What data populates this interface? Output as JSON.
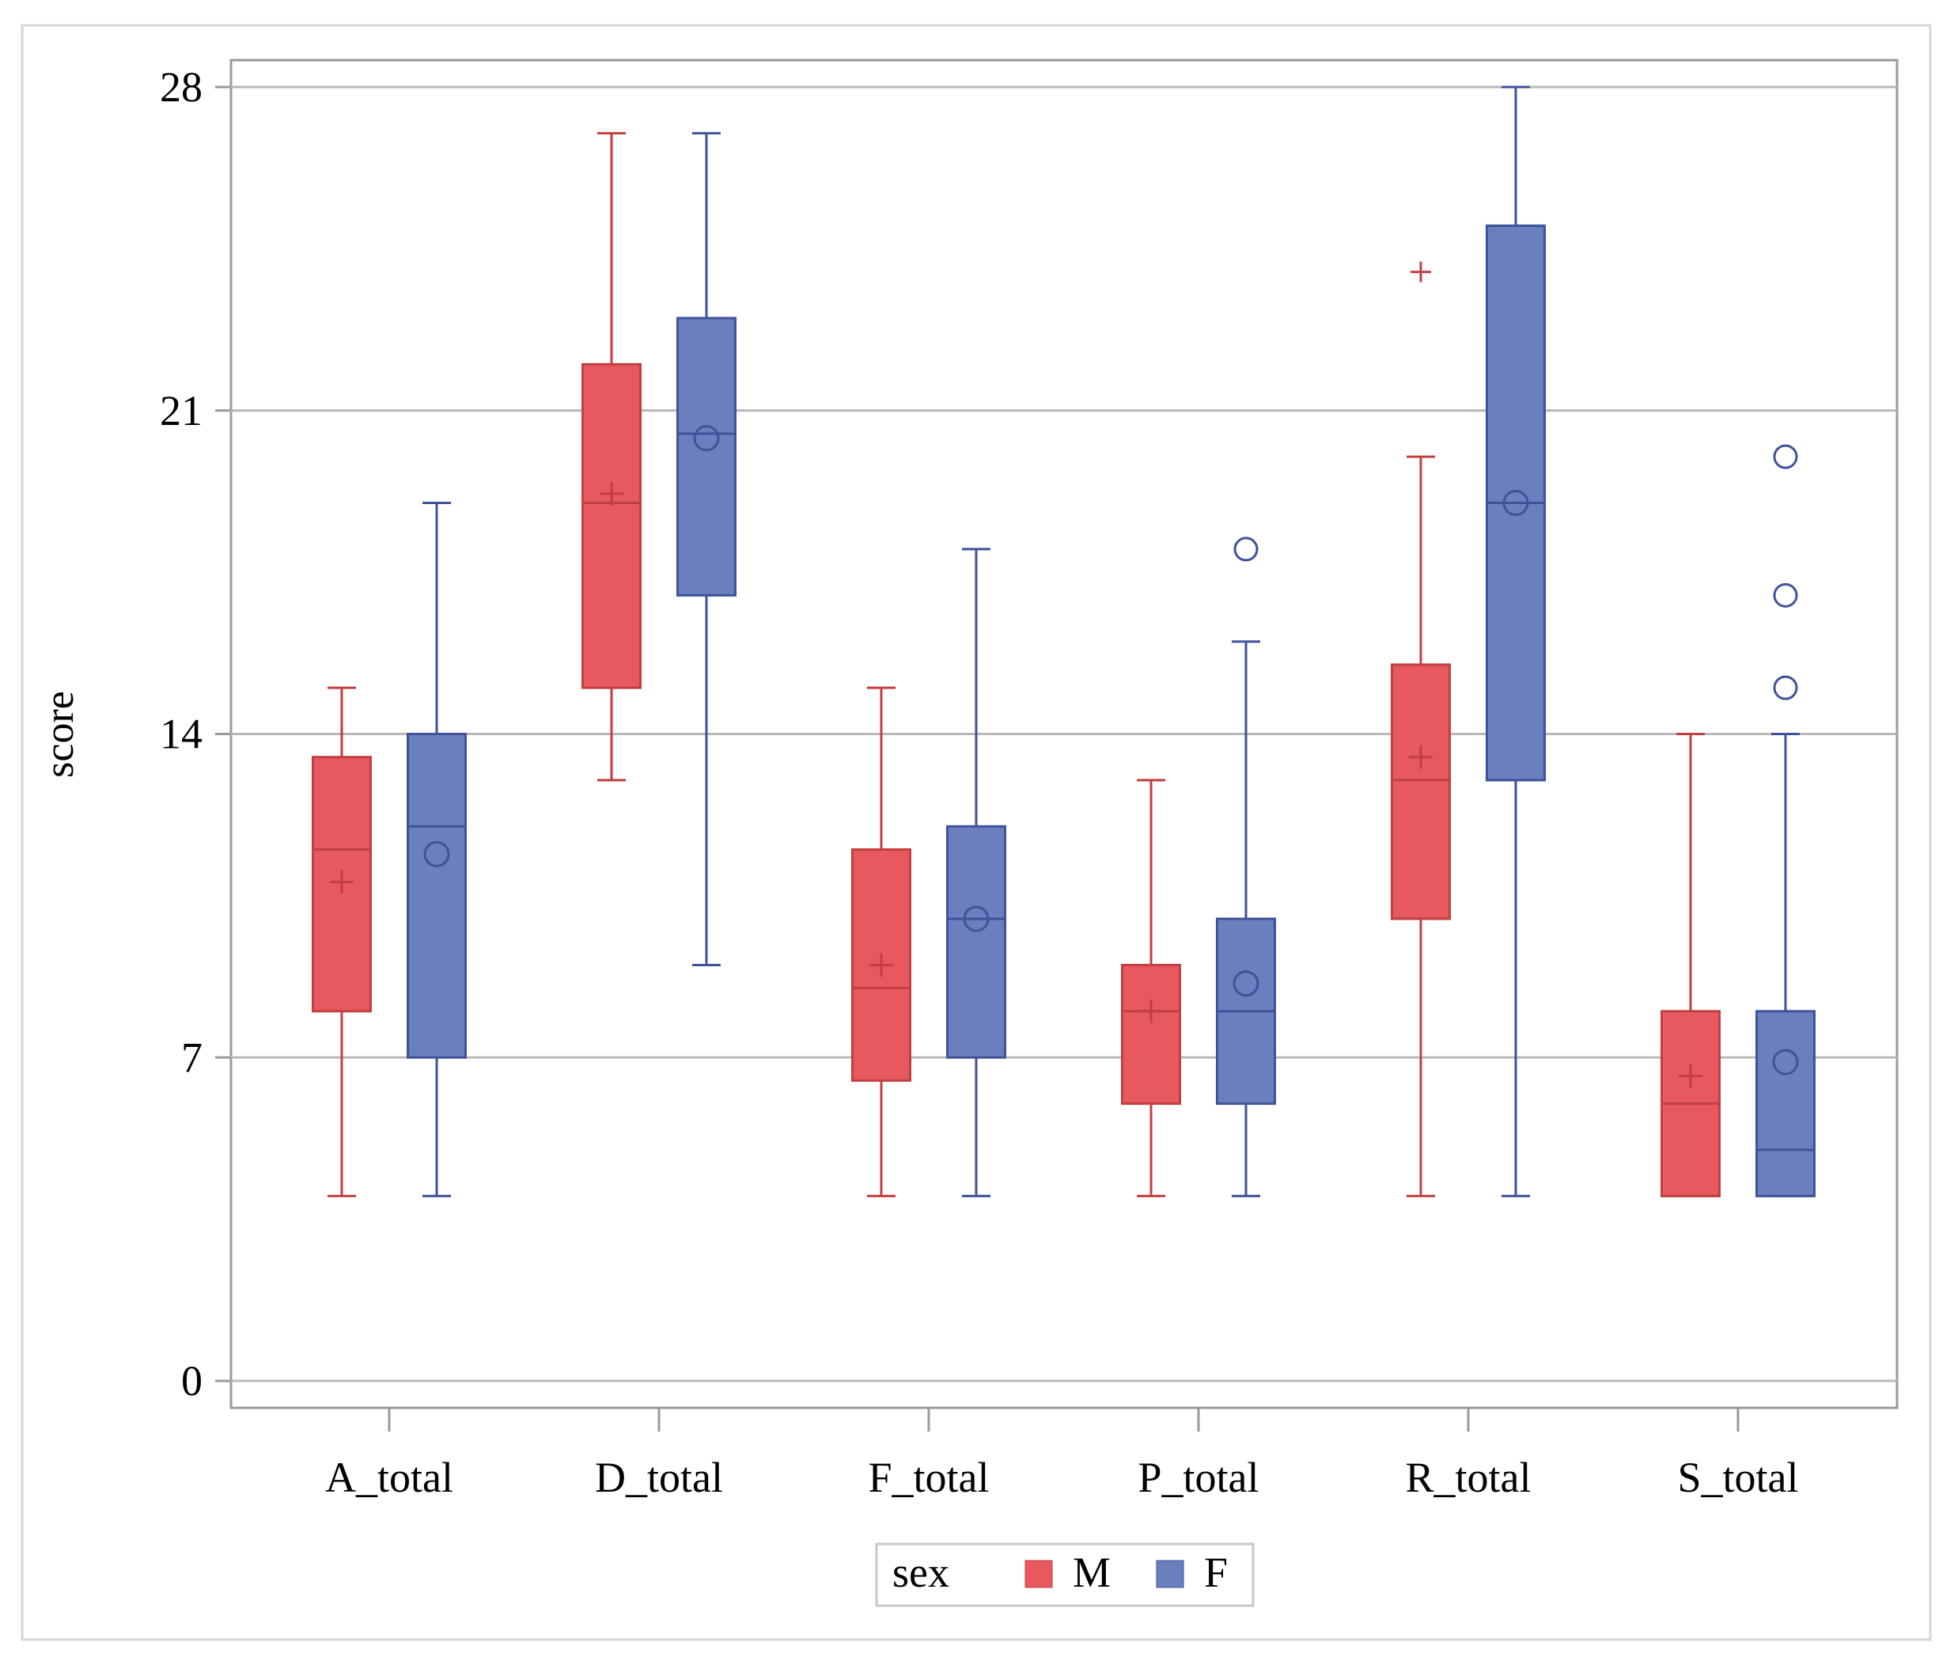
{
  "chart_data": {
    "type": "box",
    "title": "",
    "xlabel": "",
    "ylabel": "score",
    "ylim": [
      0,
      28
    ],
    "yticks": [
      0,
      7,
      14,
      21,
      28
    ],
    "grid": "horizontal",
    "legend": {
      "title": "sex",
      "placement": "bottom-center",
      "entries": [
        "M",
        "F"
      ]
    },
    "categories": [
      "A_total",
      "D_total",
      "F_total",
      "P_total",
      "R_total",
      "S_total"
    ],
    "series": [
      {
        "name": "M",
        "color": "#e8595f",
        "stroke": "#c0403f",
        "mean_marker": "plus",
        "boxes": [
          {
            "category": "A_total",
            "min": 4,
            "q1": 8,
            "median": 11.5,
            "q3": 13.5,
            "max": 15,
            "mean": 10.8,
            "outliers": []
          },
          {
            "category": "D_total",
            "min": 13,
            "q1": 15,
            "median": 19,
            "q3": 22,
            "max": 27,
            "mean": 19.2,
            "outliers": []
          },
          {
            "category": "F_total",
            "min": 4,
            "q1": 6.5,
            "median": 8.5,
            "q3": 11.5,
            "max": 15,
            "mean": 9,
            "outliers": []
          },
          {
            "category": "P_total",
            "min": 4,
            "q1": 6,
            "median": 8,
            "q3": 9,
            "max": 13,
            "mean": 8,
            "outliers": []
          },
          {
            "category": "R_total",
            "min": 4,
            "q1": 10,
            "median": 13,
            "q3": 15.5,
            "max": 20,
            "mean": 13.5,
            "outliers": [
              24
            ]
          },
          {
            "category": "S_total",
            "min": 4,
            "q1": 4,
            "median": 6,
            "q3": 8,
            "max": 14,
            "mean": 6.6,
            "outliers": []
          }
        ]
      },
      {
        "name": "F",
        "color": "#6a7fbd",
        "stroke": "#3f529a",
        "mean_marker": "circle",
        "boxes": [
          {
            "category": "A_total",
            "min": 4,
            "q1": 7,
            "median": 12,
            "q3": 14,
            "max": 19,
            "mean": 11.4,
            "outliers": []
          },
          {
            "category": "D_total",
            "min": 9,
            "q1": 17,
            "median": 20.5,
            "q3": 23,
            "max": 27,
            "mean": 20.4,
            "outliers": []
          },
          {
            "category": "F_total",
            "min": 4,
            "q1": 7,
            "median": 10,
            "q3": 12,
            "max": 18,
            "mean": 10,
            "outliers": []
          },
          {
            "category": "P_total",
            "min": 4,
            "q1": 6,
            "median": 8,
            "q3": 10,
            "max": 16,
            "mean": 8.6,
            "outliers": [
              18
            ]
          },
          {
            "category": "R_total",
            "min": 4,
            "q1": 13,
            "median": 19,
            "q3": 25,
            "max": 28,
            "mean": 19,
            "outliers": []
          },
          {
            "category": "S_total",
            "min": 4,
            "q1": 4,
            "median": 5,
            "q3": 8,
            "max": 14,
            "mean": 6.9,
            "outliers": [
              15,
              17,
              20
            ]
          }
        ]
      }
    ]
  }
}
